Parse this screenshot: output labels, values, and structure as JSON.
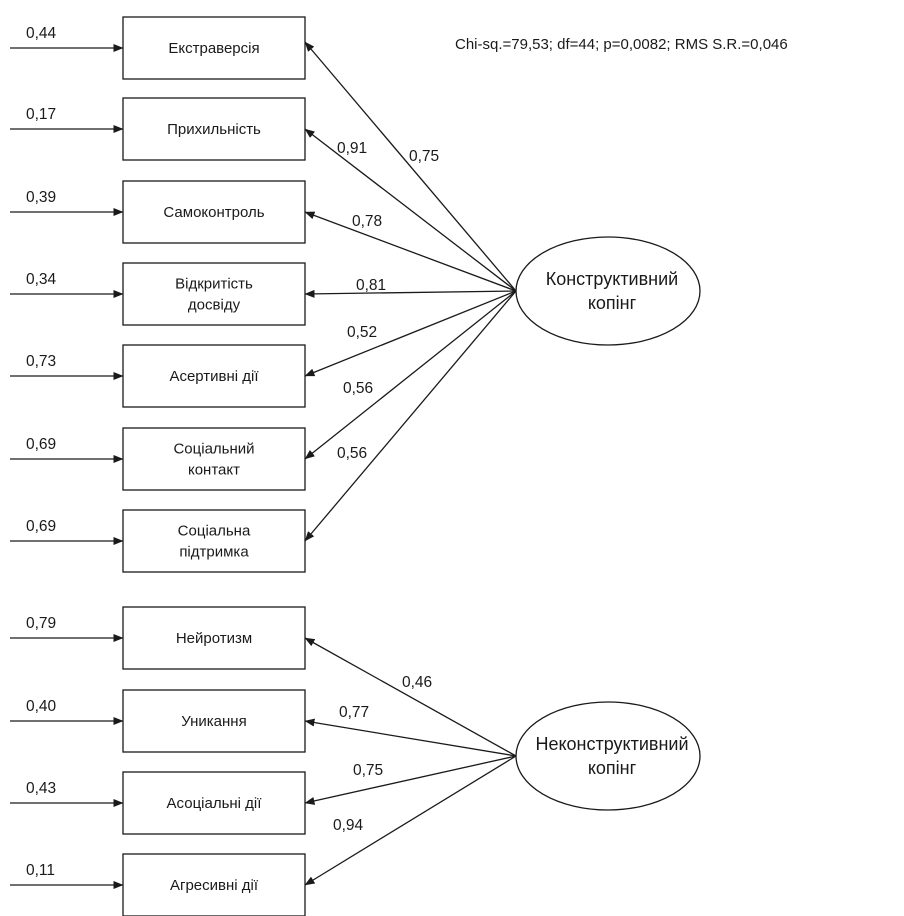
{
  "fit_statistics": "Chi-sq.=79,53; df=44; p=0,0082; RMS S.R.=0,046",
  "factors": [
    {
      "id": "constructive",
      "lines": [
        "Конструктивний",
        "копінг"
      ],
      "indicators": [
        {
          "lines": [
            "Екстраверсія"
          ],
          "error": "0,44",
          "loading": "0,75"
        },
        {
          "lines": [
            "Прихильність"
          ],
          "error": "0,17",
          "loading": "0,91"
        },
        {
          "lines": [
            "Самоконтроль"
          ],
          "error": "0,39",
          "loading": "0,78"
        },
        {
          "lines": [
            "Відкритість",
            "досвіду"
          ],
          "error": "0,34",
          "loading": "0,81"
        },
        {
          "lines": [
            "Асертивні дії"
          ],
          "error": "0,73",
          "loading": "0,52"
        },
        {
          "lines": [
            "Соціальний",
            "контакт"
          ],
          "error": "0,69",
          "loading": "0,56"
        },
        {
          "lines": [
            "Соціальна",
            "підтримка"
          ],
          "error": "0,69",
          "loading": "0,56"
        }
      ]
    },
    {
      "id": "nonconstructive",
      "lines": [
        "Неконструктивний",
        "копінг"
      ],
      "indicators": [
        {
          "lines": [
            "Нейротизм"
          ],
          "error": "0,79",
          "loading": "0,46"
        },
        {
          "lines": [
            "Уникання"
          ],
          "error": "0,40",
          "loading": "0,77"
        },
        {
          "lines": [
            "Асоціальні дії"
          ],
          "error": "0,43",
          "loading": "0,75"
        },
        {
          "lines": [
            "Агресивні дії"
          ],
          "error": "0,11",
          "loading": "0,94"
        }
      ]
    }
  ]
}
